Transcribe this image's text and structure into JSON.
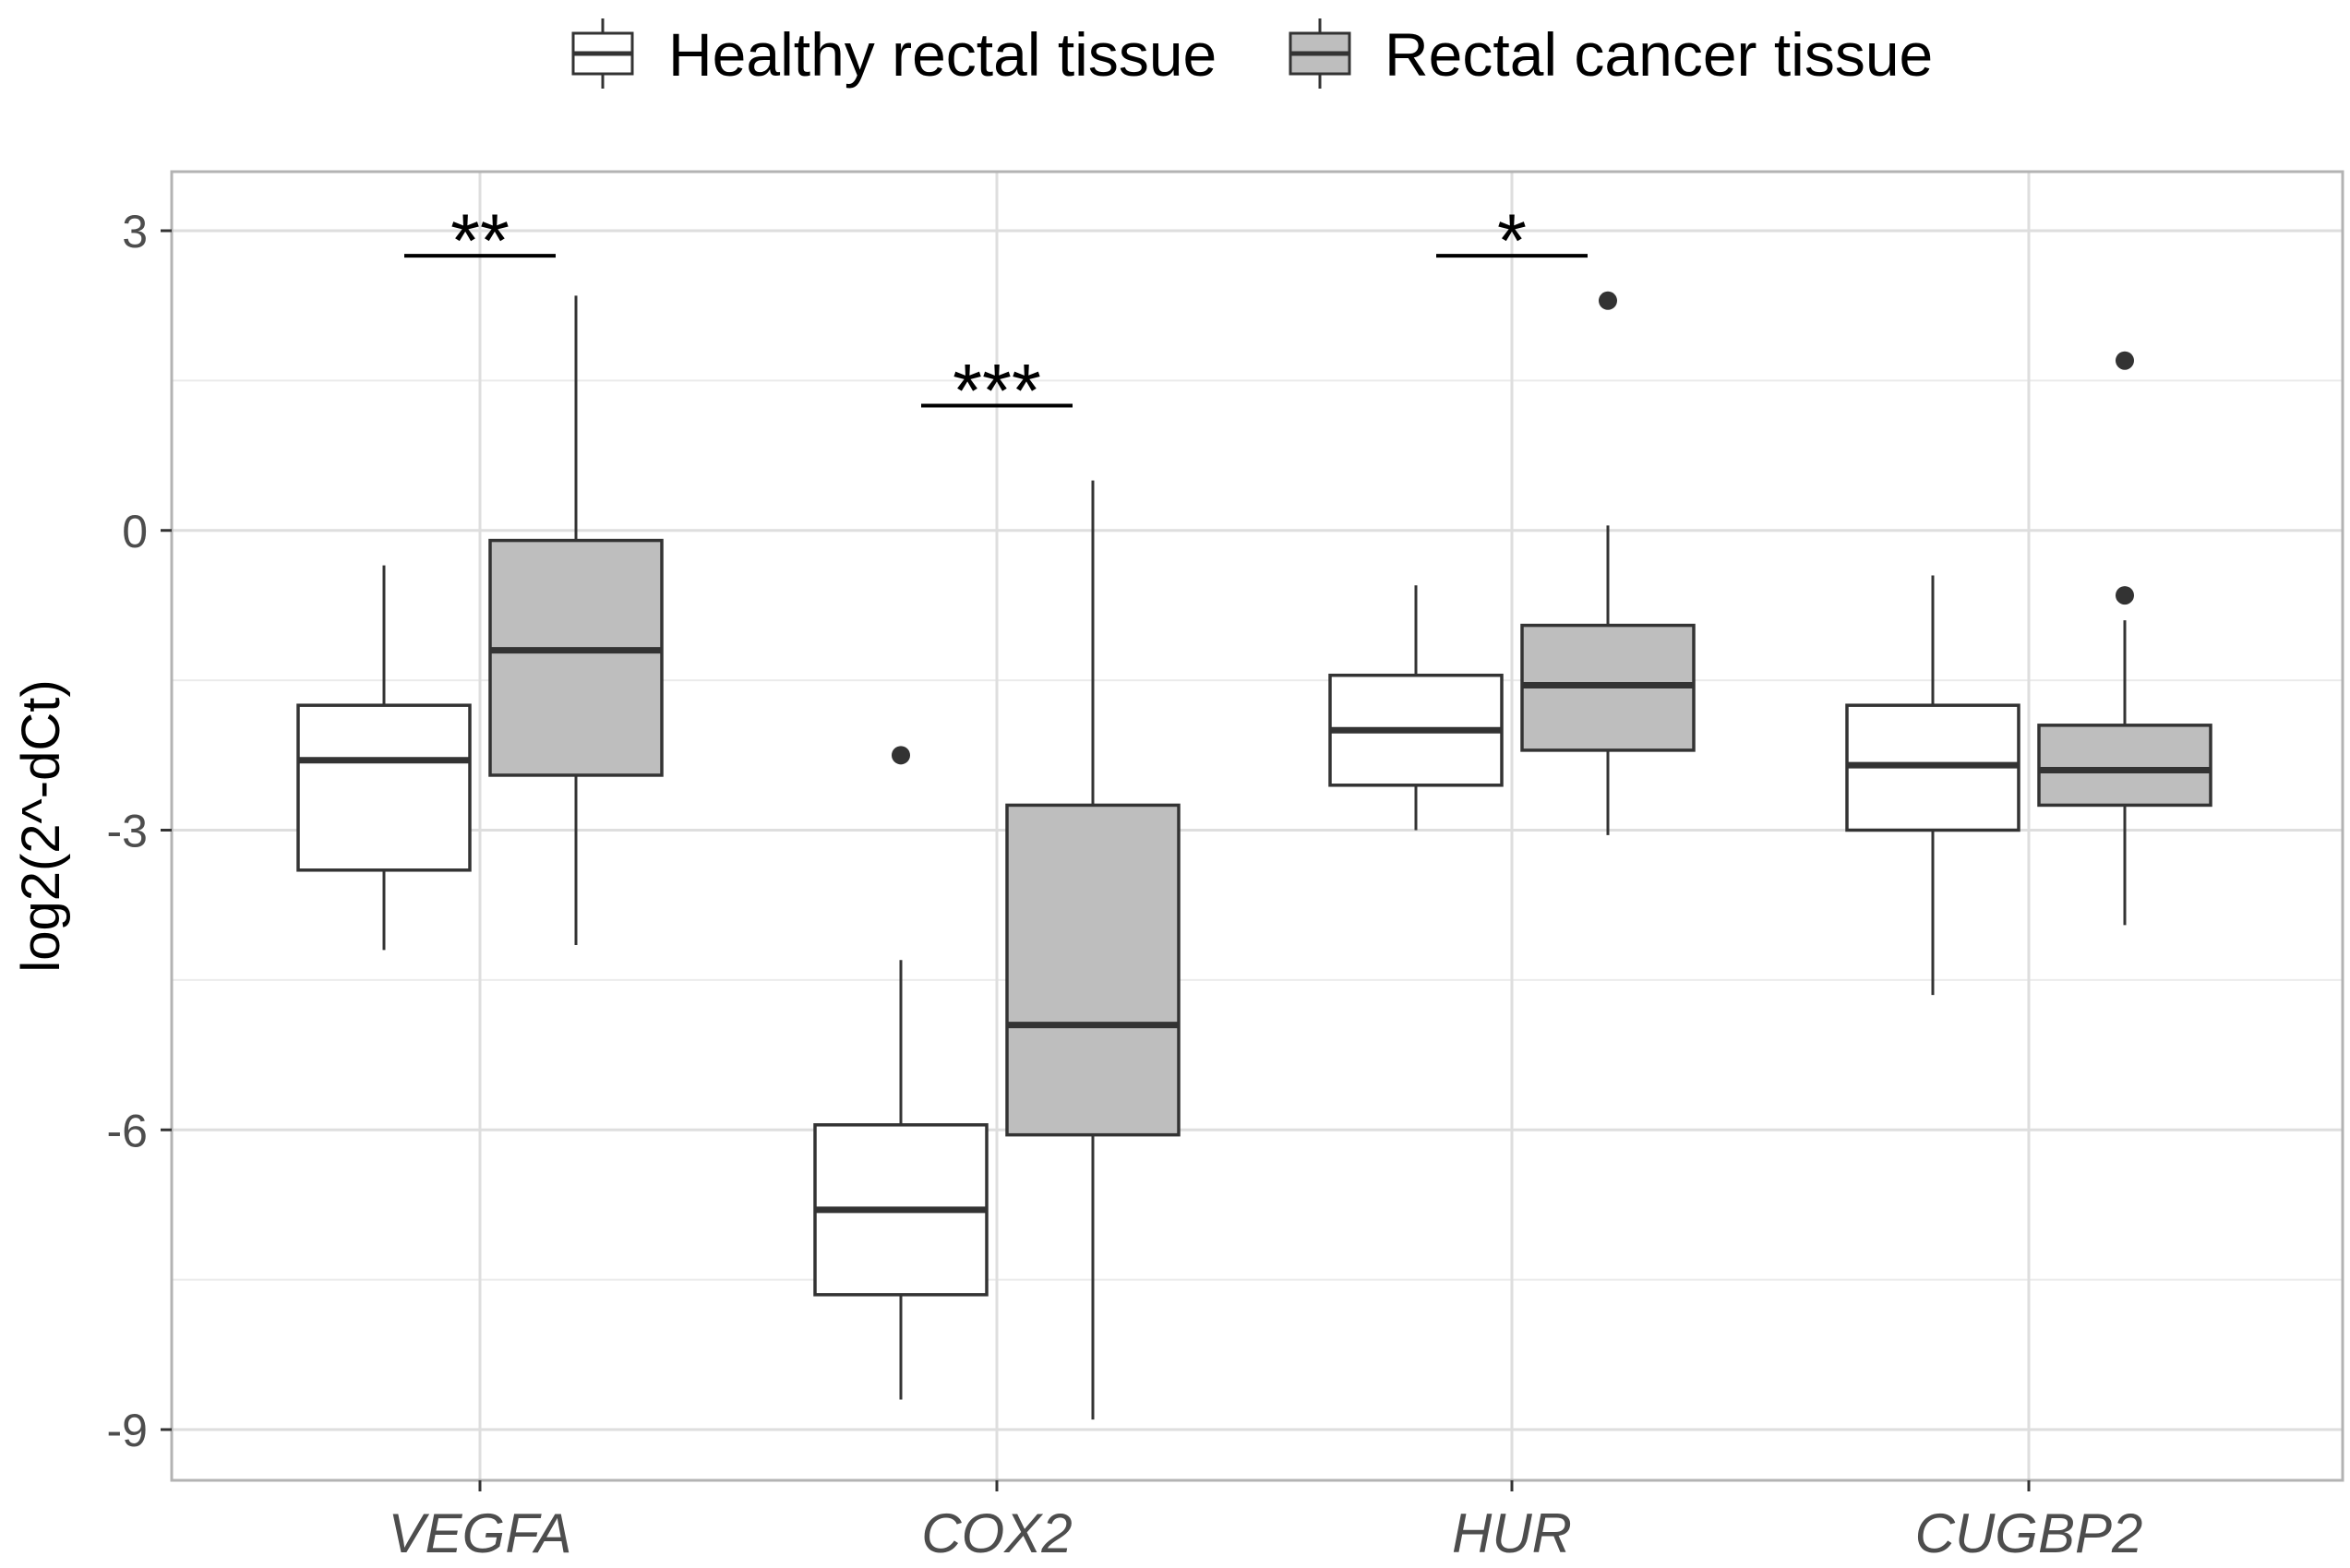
{
  "chart_data": {
    "type": "boxplot",
    "title": "",
    "xlabel": "",
    "ylabel": "log2(2^-dCt)",
    "ylim": [
      -9.5,
      3.6
    ],
    "yticks": [
      3,
      0,
      -3,
      -6,
      -9
    ],
    "ytick_labels": [
      "3",
      "0",
      "-3",
      "-6",
      "-9"
    ],
    "grid": true,
    "legend_position": "top",
    "colors": {
      "healthy": "#ffffff",
      "cancer": "#bebebe",
      "stroke": "#333333",
      "grid": "#ebebeb",
      "panel_border": "#b3b3b3"
    },
    "categories": [
      "VEGFA",
      "COX2",
      "HUR",
      "CUGBP2"
    ],
    "series": [
      {
        "name": "Healthy rectal tissue",
        "boxes": [
          {
            "whisker_low": -4.2,
            "q1": -3.4,
            "median": -2.3,
            "q3": -1.75,
            "whisker_high": -0.35,
            "outliers": []
          },
          {
            "whisker_low": -8.7,
            "q1": -7.65,
            "median": -6.8,
            "q3": -5.95,
            "whisker_high": -4.3,
            "outliers": [
              -2.25
            ]
          },
          {
            "whisker_low": -3.0,
            "q1": -2.55,
            "median": -2.0,
            "q3": -1.45,
            "whisker_high": -0.55,
            "outliers": []
          },
          {
            "whisker_low": -4.65,
            "q1": -3.0,
            "median": -2.35,
            "q3": -1.75,
            "whisker_high": -0.45,
            "outliers": []
          }
        ]
      },
      {
        "name": "Rectal cancer tissue",
        "boxes": [
          {
            "whisker_low": -4.15,
            "q1": -2.45,
            "median": -1.2,
            "q3": -0.1,
            "whisker_high": 2.35,
            "outliers": []
          },
          {
            "whisker_low": -8.9,
            "q1": -6.05,
            "median": -4.95,
            "q3": -2.75,
            "whisker_high": 0.5,
            "outliers": []
          },
          {
            "whisker_low": -3.05,
            "q1": -2.2,
            "median": -1.55,
            "q3": -0.95,
            "whisker_high": 0.05,
            "outliers": [
              2.3
            ]
          },
          {
            "whisker_low": -3.95,
            "q1": -2.75,
            "median": -2.4,
            "q3": -1.95,
            "whisker_high": -0.9,
            "outliers": [
              -0.65,
              1.7
            ]
          }
        ]
      }
    ],
    "annotations": [
      {
        "category": "VEGFA",
        "label": "**",
        "y": 2.75
      },
      {
        "category": "COX2",
        "label": "***",
        "y": 1.25
      },
      {
        "category": "HUR",
        "label": "*",
        "y": 2.75
      }
    ]
  }
}
